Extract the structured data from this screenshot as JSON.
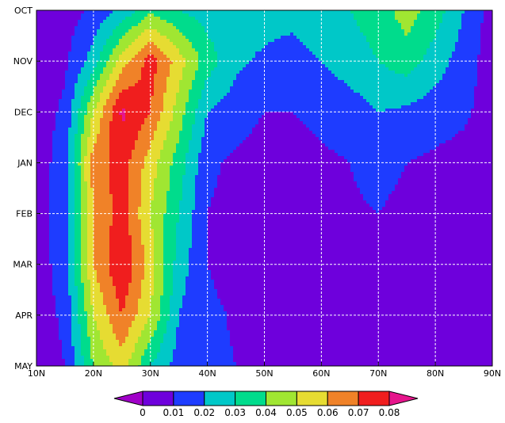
{
  "chart_data": {
    "type": "heatmap",
    "subtype": "filled-contour",
    "title": "",
    "xlabel": "",
    "ylabel": "",
    "x": [
      10,
      20,
      30,
      40,
      50,
      60,
      70,
      80,
      90
    ],
    "x_tick_labels": [
      "10N",
      "20N",
      "30N",
      "40N",
      "50N",
      "60N",
      "70N",
      "80N",
      "90N"
    ],
    "y_tick_labels": [
      "OCT",
      "NOV",
      "DEC",
      "JAN",
      "FEB",
      "MAR",
      "APR",
      "MAY"
    ],
    "xlim": [
      10,
      90
    ],
    "ylim_months": [
      "MAY",
      "OCT"
    ],
    "grid": true,
    "z": [
      [
        0.005,
        0.005,
        0.012,
        0.022,
        0.038,
        0.03,
        0.025,
        0.025,
        0.025,
        0.025,
        0.03,
        0.03,
        0.035,
        0.045,
        0.035,
        0.02,
        0.005
      ],
      [
        0.005,
        0.008,
        0.025,
        0.055,
        0.075,
        0.055,
        0.035,
        0.022,
        0.018,
        0.014,
        0.02,
        0.025,
        0.03,
        0.035,
        0.025,
        0.015,
        0.005
      ],
      [
        0.005,
        0.012,
        0.05,
        0.082,
        0.07,
        0.045,
        0.02,
        0.015,
        0.01,
        0.01,
        0.013,
        0.015,
        0.02,
        0.018,
        0.015,
        0.012,
        0.005
      ],
      [
        0.005,
        0.015,
        0.065,
        0.075,
        0.055,
        0.035,
        0.012,
        0.008,
        0.005,
        0.005,
        0.008,
        0.01,
        0.015,
        0.01,
        0.008,
        0.006,
        0.003
      ],
      [
        0.005,
        0.015,
        0.06,
        0.075,
        0.05,
        0.03,
        0.01,
        0.007,
        0.005,
        0.005,
        0.005,
        0.008,
        0.01,
        0.006,
        0.005,
        0.005,
        0.002
      ],
      [
        0.005,
        0.015,
        0.06,
        0.08,
        0.055,
        0.025,
        0.01,
        0.006,
        0.005,
        0.004,
        0.004,
        0.005,
        0.007,
        0.005,
        0.005,
        0.004,
        0.002
      ],
      [
        0.005,
        0.012,
        0.05,
        0.07,
        0.05,
        0.02,
        0.012,
        0.009,
        0.005,
        0.004,
        0.004,
        0.004,
        0.004,
        0.004,
        0.004,
        0.004,
        0.002
      ],
      [
        0.005,
        0.01,
        0.04,
        0.055,
        0.03,
        0.015,
        0.012,
        0.01,
        0.008,
        0.006,
        0.005,
        0.004,
        0.004,
        0.004,
        0.004,
        0.004,
        0.002
      ]
    ],
    "levels": [
      0,
      0.01,
      0.02,
      0.03,
      0.04,
      0.05,
      0.06,
      0.07,
      0.08
    ],
    "colorbar_labels": [
      "0",
      "0.01",
      "0.02",
      "0.03",
      "0.04",
      "0.05",
      "0.06",
      "0.07",
      "0.08"
    ],
    "colors": [
      "#a000c8",
      "#6e00dc",
      "#1e3cff",
      "#00c8c8",
      "#00dc8c",
      "#a0e632",
      "#e6dc32",
      "#f08228",
      "#f01e1e",
      "#e6158c"
    ]
  }
}
